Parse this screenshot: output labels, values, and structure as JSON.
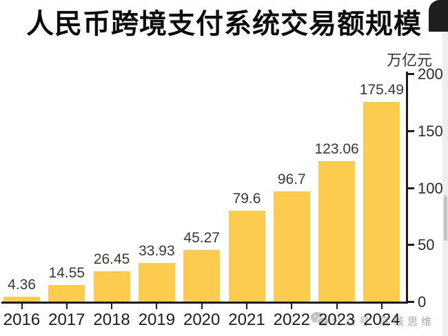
{
  "header": {
    "title": "人民币跨境支付系统交易额规模"
  },
  "watermark": {
    "icon": "wechat-icon",
    "text": "公众号·底线思维"
  },
  "chart_data": {
    "type": "bar",
    "title": "人民币跨境支付系统交易额规模",
    "unit_label": "万亿元",
    "categories": [
      "2016",
      "2017",
      "2018",
      "2019",
      "2020",
      "2021",
      "2022",
      "2023",
      "2024"
    ],
    "values": [
      4.36,
      14.55,
      26.45,
      33.93,
      45.27,
      79.6,
      96.7,
      123.06,
      175.49
    ],
    "bar_labels": [
      "4.36",
      "14.55",
      "26.45",
      "33.93",
      "45.27",
      "79.6",
      "96.7",
      "123.06",
      "175.49"
    ],
    "ylim": [
      0,
      200
    ],
    "yticks": [
      0,
      50,
      100,
      150,
      200
    ],
    "ytick_labels": [
      "0",
      "50",
      "100",
      "150",
      "200"
    ],
    "y_axis_position": "right",
    "grid": false,
    "legend": null,
    "bar_color": "#FDCB4D",
    "axis_color": "#1a1a1a",
    "text_color": "#373737",
    "watermark_color": "#a9a9a9"
  }
}
